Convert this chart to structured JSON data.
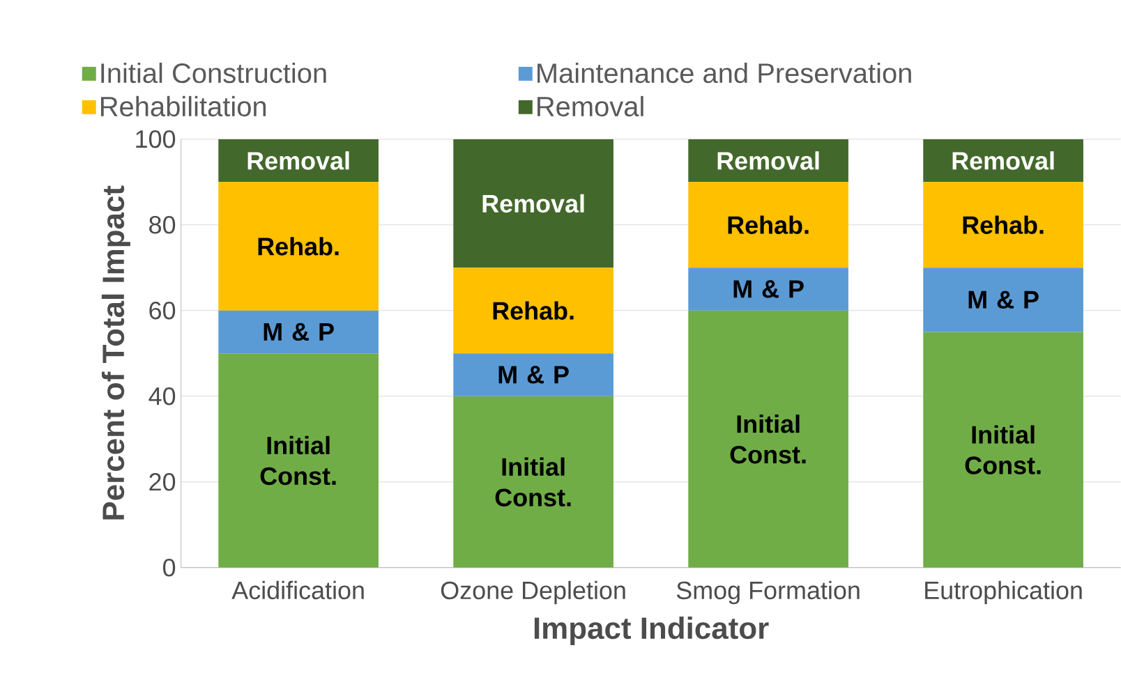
{
  "chart_data": {
    "type": "bar",
    "stacked": true,
    "xlabel": "Impact Indicator",
    "ylabel": "Percent of Total Impact",
    "categories": [
      "Acidification",
      "Ozone Depletion",
      "Smog Formation",
      "Eutrophication"
    ],
    "series": [
      {
        "name": "Initial Construction",
        "color": "#70ad47",
        "values": [
          50,
          40,
          60,
          55
        ],
        "value_labels": [
          "Initial Const.",
          "Initial Const.",
          "Initial Const.",
          "Initial Const."
        ]
      },
      {
        "name": "Maintenance and Preservation",
        "color": "#5b9bd5",
        "values": [
          10,
          10,
          10,
          15
        ],
        "value_labels": [
          "M & P",
          "M & P",
          "M & P",
          "M & P"
        ]
      },
      {
        "name": "Rehabilitation",
        "color": "#ffc000",
        "values": [
          30,
          20,
          20,
          20
        ],
        "value_labels": [
          "Rehab.",
          "Rehab.",
          "Rehab.",
          "Rehab."
        ]
      },
      {
        "name": "Removal",
        "color": "#43682b",
        "values": [
          10,
          30,
          10,
          10
        ],
        "value_labels": [
          "Removal",
          "Removal",
          "Removal",
          "Removal"
        ]
      }
    ],
    "ylim": [
      0,
      100
    ],
    "yticks": [
      0,
      20,
      40,
      60,
      80,
      100
    ],
    "grid": "y",
    "legend": "top"
  }
}
